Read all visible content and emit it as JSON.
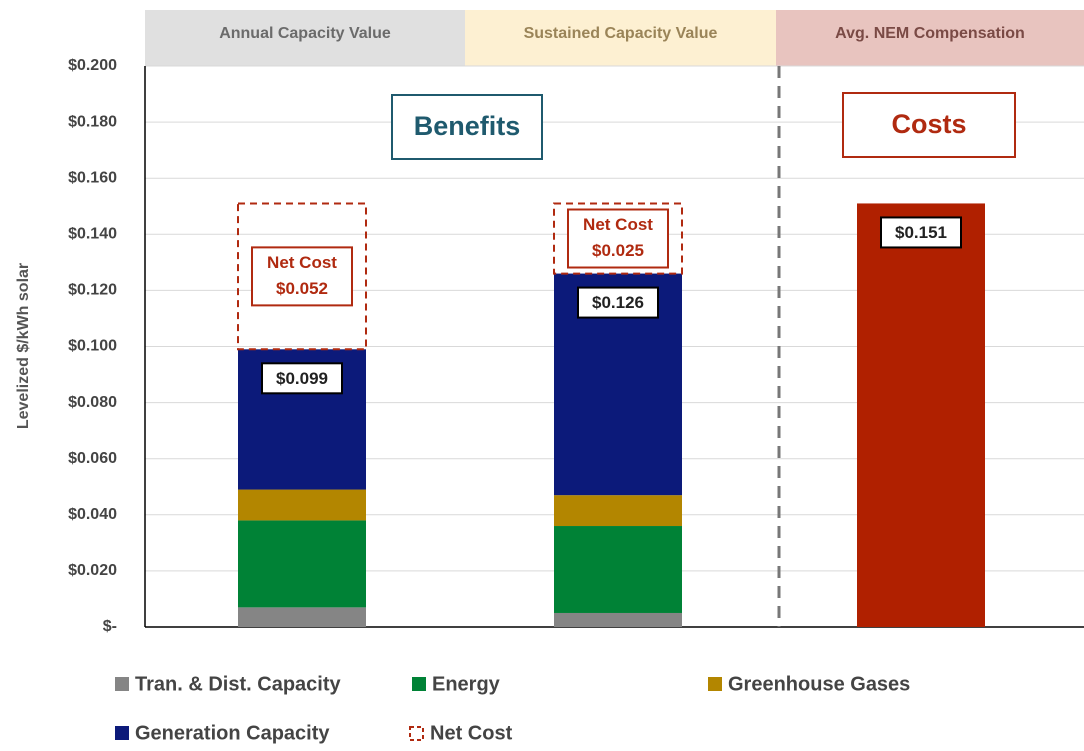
{
  "chart_data": {
    "type": "stacked_bar",
    "categories": [
      "Annual Capacity Value",
      "Sustained Capacity Value",
      "Avg. NEM Compensation"
    ],
    "category_colors": [
      "#e0e0e0",
      "#fdf0d2",
      "#e8c4bf"
    ],
    "category_text_colors": [
      "#6b6b6b",
      "#9a8458",
      "#7a4a45"
    ],
    "y_label": "Levelized $/kWh solar",
    "annotations": [
      {
        "text": "Benefits",
        "color": "#1f5a6e"
      },
      {
        "text": "Costs",
        "color": "#b02a10"
      }
    ],
    "ylim": [
      0,
      0.2
    ],
    "yticks": [
      {
        "value": 0,
        "label": "$-"
      },
      {
        "value": 0.02,
        "label": "$0.020"
      },
      {
        "value": 0.04,
        "label": "$0.040"
      },
      {
        "value": 0.06,
        "label": "$0.060"
      },
      {
        "value": 0.08,
        "label": "$0.080"
      },
      {
        "value": 0.1,
        "label": "$0.100"
      },
      {
        "value": 0.12,
        "label": "$0.120"
      },
      {
        "value": 0.14,
        "label": "$0.140"
      },
      {
        "value": 0.16,
        "label": "$0.160"
      },
      {
        "value": 0.18,
        "label": "$0.180"
      },
      {
        "value": 0.2,
        "label": "$0.200"
      }
    ],
    "grid": true,
    "series": [
      {
        "name": "Tran. & Dist. Capacity",
        "color": "#858585",
        "values": [
          0.007,
          0.005,
          null
        ]
      },
      {
        "name": "Energy",
        "color": "#008236",
        "values": [
          0.031,
          0.031,
          null
        ]
      },
      {
        "name": "Greenhouse Gases",
        "color": "#b38600",
        "values": [
          0.011,
          0.011,
          null
        ]
      },
      {
        "name": "Generation Capacity",
        "color": "#0c1a7a",
        "values": [
          0.05,
          0.079,
          null
        ]
      },
      {
        "name": "Net Cost",
        "color": "#b02a10",
        "style": "dashed",
        "values": [
          0.052,
          0.025,
          null
        ],
        "value_labels": [
          "$0.052",
          "$0.025",
          null
        ]
      },
      {
        "color": "#b02000",
        "values": [
          null,
          null,
          0.151
        ],
        "value_labels": [
          null,
          null,
          "$0.151"
        ]
      }
    ],
    "totals": {
      "values": [
        0.099,
        0.126,
        null
      ],
      "value_labels": [
        "$0.099",
        "$0.126",
        null
      ]
    }
  }
}
